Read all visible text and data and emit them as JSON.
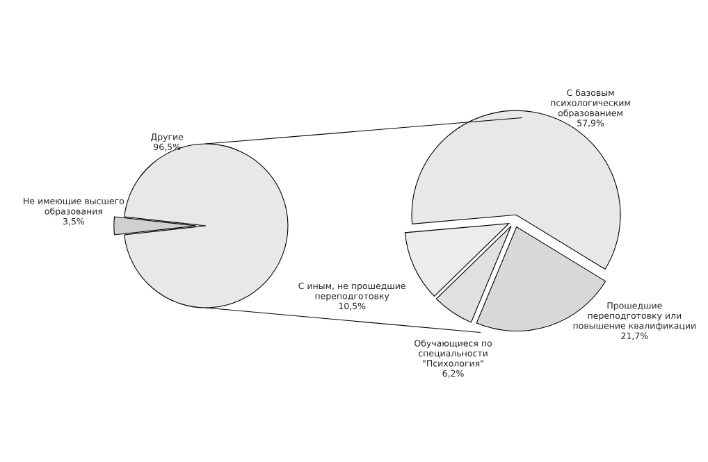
{
  "chart_data": [
    {
      "type": "pie",
      "categories": [
        "Другие",
        "Не имеющие высшего\nобразования"
      ],
      "values": [
        96.5,
        3.5
      ],
      "colors": [
        "#e8e8e8",
        "#d0d0d0"
      ],
      "value_labels": [
        "96,5%",
        "3,5%"
      ]
    },
    {
      "type": "pie",
      "categories": [
        "С базовым\nпсихологическим\nобразованием",
        "Прошедшие\nпереподготовку или\nповышение квалификации",
        "Обучающиеся по\nспециальности\n\"Психология\"",
        "С иным, не прошедшие\nпереподготовку"
      ],
      "values": [
        57.9,
        21.7,
        6.2,
        10.5
      ],
      "colors": [
        "#e8e8e8",
        "#d8d8d8",
        "#e0e0e0",
        "#ececec"
      ],
      "value_labels": [
        "57,9%",
        "21,7%",
        "6,2%",
        "10,5%"
      ]
    }
  ]
}
